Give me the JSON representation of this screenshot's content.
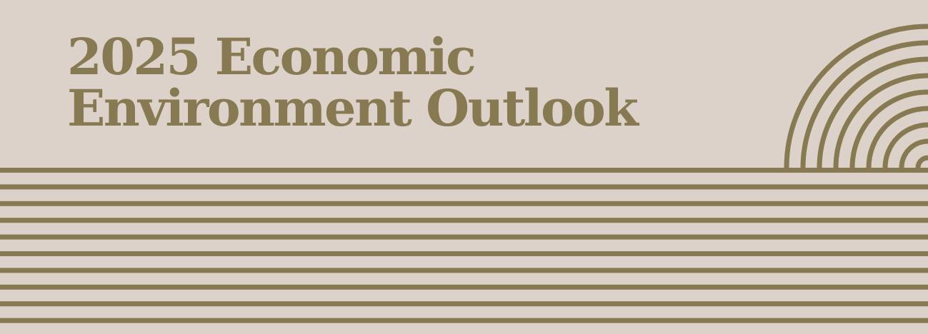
{
  "banner": {
    "title_line_1": "2025 Economic",
    "title_line_2": "Environment Outlook"
  },
  "colors": {
    "background": "#dcd2c9",
    "accent": "#877a52"
  },
  "decor": {
    "stripes_icon": "horizontal-stripes",
    "arcs_icon": "concentric-arcs"
  }
}
